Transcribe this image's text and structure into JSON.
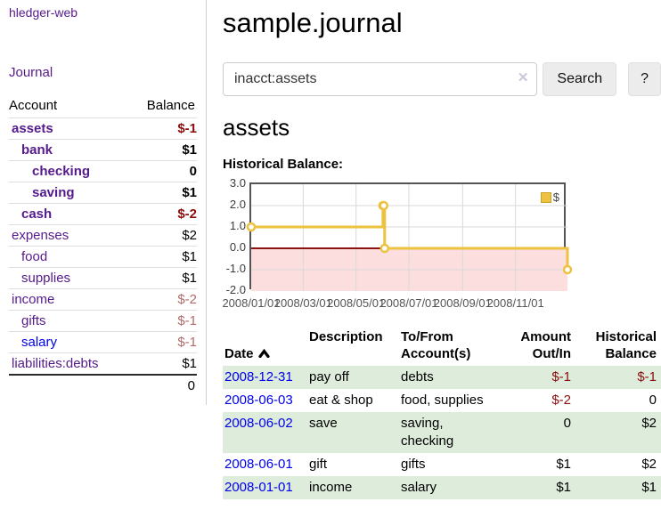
{
  "app": {
    "title": "hledger-web",
    "nav_journal": "Journal"
  },
  "sidebar": {
    "columns": {
      "account": "Account",
      "balance": "Balance"
    },
    "accounts": [
      {
        "name": "assets",
        "balance": "$-1",
        "depth": 1
      },
      {
        "name": "bank",
        "balance": "$1",
        "depth": 2
      },
      {
        "name": "checking",
        "balance": "0",
        "depth": 3
      },
      {
        "name": "saving",
        "balance": "$1",
        "depth": 3
      },
      {
        "name": "cash",
        "balance": "$-2",
        "depth": 2
      },
      {
        "name": "expenses",
        "balance": "$2",
        "depth": 1
      },
      {
        "name": "food",
        "balance": "$1",
        "depth": 2
      },
      {
        "name": "supplies",
        "balance": "$1",
        "depth": 2
      },
      {
        "name": "income",
        "balance": "$-2",
        "depth": 1
      },
      {
        "name": "gifts",
        "balance": "$-1",
        "depth": 2
      },
      {
        "name": "salary",
        "balance": "$-1",
        "depth": 2
      },
      {
        "name": "liabilities:debts",
        "balance": "$1",
        "depth": 1
      }
    ],
    "total_balance": "0"
  },
  "main": {
    "title": "sample.journal",
    "search": {
      "value": "inacct:assets",
      "clear_icon": "✕",
      "button": "Search",
      "help": "?"
    },
    "account_heading": "assets",
    "chart_heading": "Historical Balance:"
  },
  "chart_data": {
    "type": "line",
    "title": "Historical Balance",
    "series": [
      {
        "name": "$",
        "color": "#edc240",
        "style": "step-line-with-markers",
        "points": [
          [
            "2008-01-01",
            1
          ],
          [
            "2008-06-01",
            2
          ],
          [
            "2008-06-02",
            2
          ],
          [
            "2008-06-03",
            0
          ],
          [
            "2008-12-31",
            -1
          ]
        ]
      }
    ],
    "x_ticks": [
      {
        "label": "2008/01/01",
        "date": "2008-01-01"
      },
      {
        "label": "2008/03/01",
        "date": "2008-03-01"
      },
      {
        "label": "2008/05/01",
        "date": "2008-05-01"
      },
      {
        "label": "2008/07/01",
        "date": "2008-07-01"
      },
      {
        "label": "2008/09/01",
        "date": "2008-09-01"
      },
      {
        "label": "2008/11/01",
        "date": "2008-11-01"
      }
    ],
    "y_ticks": [
      "3.0",
      "2.0",
      "1.0",
      "0.0",
      "-1.0",
      "-2.0"
    ],
    "xlim": [
      "2008-01-01",
      "2008-12-31"
    ],
    "ylim": [
      -2,
      3
    ],
    "grid": true,
    "grid_color": "#d9d9d9",
    "legend_position": "top-right",
    "negative_region_color": "#fcdede",
    "zero_line_color": "#8c1313",
    "plot_border_color": "#545454"
  },
  "register": {
    "headers": {
      "date": "Date",
      "description": "Description",
      "accounts": "To/From\nAccount(s)",
      "amount": "Amount\nOut/In",
      "balance": "Historical\nBalance"
    },
    "rows": [
      {
        "date": "2008-12-31",
        "description": "pay off",
        "accounts": "debts",
        "amount": "$-1",
        "balance": "$-1"
      },
      {
        "date": "2008-06-03",
        "description": "eat & shop",
        "accounts": "food, supplies",
        "amount": "$-2",
        "balance": "0"
      },
      {
        "date": "2008-06-02",
        "description": "save",
        "accounts": "saving, checking",
        "amount": "0",
        "balance": "$2"
      },
      {
        "date": "2008-06-01",
        "description": "gift",
        "accounts": "gifts",
        "amount": "$1",
        "balance": "$2"
      },
      {
        "date": "2008-01-01",
        "description": "income",
        "accounts": "salary",
        "amount": "$1",
        "balance": "$1"
      }
    ]
  }
}
